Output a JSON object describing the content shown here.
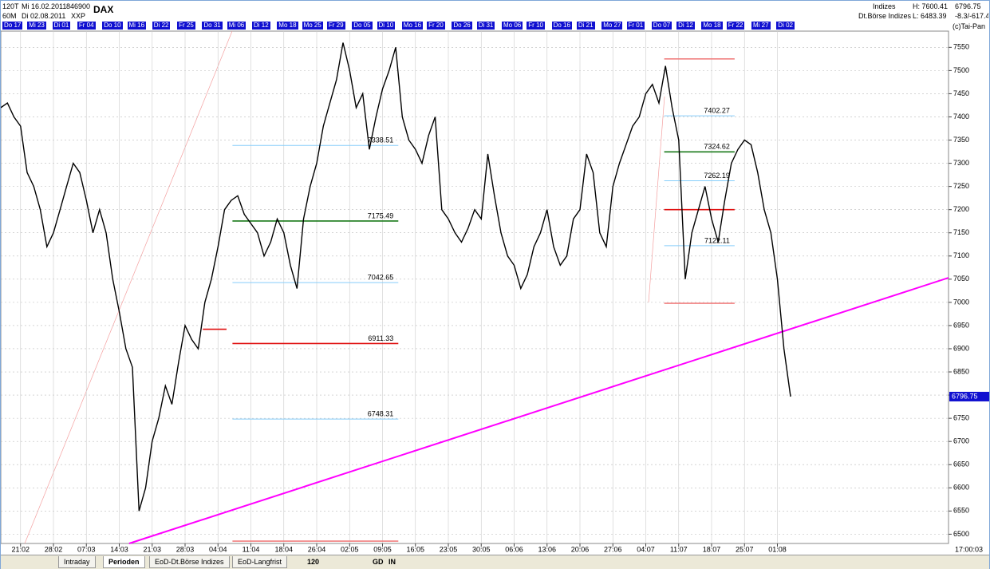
{
  "header": {
    "left": [
      "120T",
      "Mi 16.02.2011",
      "846900",
      "60M",
      "Di 02.08.2011",
      "XXP"
    ],
    "symbol": "DAX",
    "right": [
      "Indizes",
      "H: 7600.41",
      "6796.75",
      "Dt.Börse Indizes",
      "L: 6483.39",
      "-8.3/-617.4",
      "(c)Tai-Pan"
    ]
  },
  "date_strip": [
    "Do 17",
    "Mi 23",
    "Di 01",
    "Fr 04",
    "Do 10",
    "Mi 16",
    "Di 22",
    "Fr 25",
    "Do 31",
    "Mi 06",
    "Di 12",
    "Mo 18",
    "Mo 25",
    "Fr 29",
    "Do 05",
    "Di 10",
    "Mo 16",
    "Fr 20",
    "Do 26",
    "Di 31",
    "Mo 06",
    "Fr 10",
    "Do 16",
    "Di 21",
    "Mo 27",
    "Fr 01",
    "Do 07",
    "Di 12",
    "Mo 18",
    "Fr 22",
    "Mi 27",
    "Di 02"
  ],
  "chart_data": {
    "type": "line",
    "xlim": [
      0,
      144
    ],
    "ylim": [
      6480,
      7585
    ],
    "xticks": [
      {
        "value": 3,
        "label": "21:02"
      },
      {
        "value": 8,
        "label": "28:02"
      },
      {
        "value": 13,
        "label": "07:03"
      },
      {
        "value": 18,
        "label": "14:03"
      },
      {
        "value": 23,
        "label": "21:03"
      },
      {
        "value": 28,
        "label": "28:03"
      },
      {
        "value": 33,
        "label": "04:04"
      },
      {
        "value": 38,
        "label": "11:04"
      },
      {
        "value": 43,
        "label": "18:04"
      },
      {
        "value": 48,
        "label": "26:04"
      },
      {
        "value": 53,
        "label": "02:05"
      },
      {
        "value": 58,
        "label": "09:05"
      },
      {
        "value": 63,
        "label": "16:05"
      },
      {
        "value": 68,
        "label": "23:05"
      },
      {
        "value": 73,
        "label": "30:05"
      },
      {
        "value": 78,
        "label": "06:06"
      },
      {
        "value": 83,
        "label": "13:06"
      },
      {
        "value": 88,
        "label": "20:06"
      },
      {
        "value": 93,
        "label": "27:06"
      },
      {
        "value": 98,
        "label": "04:07"
      },
      {
        "value": 103,
        "label": "11:07"
      },
      {
        "value": 108,
        "label": "18:07"
      },
      {
        "value": 113,
        "label": "25:07"
      },
      {
        "value": 118,
        "label": "01:08"
      }
    ],
    "yticks": [
      6500,
      6550,
      6600,
      6650,
      6700,
      6750,
      6800,
      6850,
      6900,
      6950,
      7000,
      7050,
      7100,
      7150,
      7200,
      7250,
      7300,
      7350,
      7400,
      7450,
      7500,
      7550
    ],
    "series": [
      {
        "name": "DAX",
        "color": "#000000",
        "x": [
          0,
          1,
          2,
          3,
          4,
          5,
          6,
          7,
          8,
          9,
          10,
          11,
          12,
          13,
          14,
          15,
          16,
          17,
          18,
          19,
          20,
          21,
          22,
          23,
          24,
          25,
          26,
          27,
          28,
          29,
          30,
          31,
          32,
          33,
          34,
          35,
          36,
          37,
          38,
          39,
          40,
          41,
          42,
          43,
          44,
          45,
          46,
          47,
          48,
          49,
          50,
          51,
          52,
          53,
          54,
          55,
          56,
          57,
          58,
          59,
          60,
          61,
          62,
          63,
          64,
          65,
          66,
          67,
          68,
          69,
          70,
          71,
          72,
          73,
          74,
          75,
          76,
          77,
          78,
          79,
          80,
          81,
          82,
          83,
          84,
          85,
          86,
          87,
          88,
          89,
          90,
          91,
          92,
          93,
          94,
          95,
          96,
          97,
          98,
          99,
          100,
          101,
          102,
          103,
          104,
          105,
          106,
          107,
          108,
          109,
          110,
          111,
          112,
          113,
          114,
          115,
          116,
          117,
          118,
          119,
          120
        ],
        "values": [
          7420,
          7430,
          7400,
          7380,
          7280,
          7250,
          7200,
          7120,
          7150,
          7200,
          7250,
          7300,
          7280,
          7220,
          7150,
          7200,
          7150,
          7050,
          6980,
          6900,
          6860,
          6550,
          6600,
          6700,
          6750,
          6820,
          6780,
          6870,
          6950,
          6920,
          6900,
          7000,
          7050,
          7120,
          7200,
          7220,
          7230,
          7190,
          7170,
          7150,
          7100,
          7130,
          7180,
          7150,
          7080,
          7030,
          7180,
          7250,
          7300,
          7380,
          7430,
          7480,
          7560,
          7500,
          7420,
          7450,
          7330,
          7400,
          7460,
          7500,
          7550,
          7400,
          7350,
          7330,
          7300,
          7360,
          7400,
          7200,
          7180,
          7150,
          7130,
          7160,
          7200,
          7180,
          7320,
          7230,
          7150,
          7100,
          7080,
          7030,
          7060,
          7120,
          7150,
          7200,
          7120,
          7080,
          7100,
          7180,
          7200,
          7320,
          7280,
          7150,
          7120,
          7250,
          7300,
          7340,
          7380,
          7400,
          7450,
          7470,
          7430,
          7510,
          7420,
          7350,
          7050,
          7150,
          7200,
          7250,
          7180,
          7130,
          7220,
          7300,
          7330,
          7350,
          7340,
          7280,
          7200,
          7150,
          7050,
          6900,
          6796.75
        ]
      }
    ],
    "levels": [
      {
        "value": 7338.51,
        "color": "#87cefa",
        "x": [
          35.2,
          60.4
        ]
      },
      {
        "value": 7175.49,
        "color": "#1a7a1a",
        "x": [
          35.2,
          60.4
        ]
      },
      {
        "value": 7042.65,
        "color": "#87cefa",
        "x": [
          35.2,
          60.4
        ]
      },
      {
        "value": 6911.33,
        "color": "#e01010",
        "x": [
          35.2,
          60.4
        ]
      },
      {
        "value": 6748.31,
        "color": "#87cefa",
        "x": [
          35.2,
          60.4
        ]
      },
      {
        "value": 6485,
        "color": "#f08080",
        "x": [
          35.2,
          60.4
        ]
      },
      {
        "value": 6942,
        "color": "#e01010",
        "x": [
          30.7,
          34.3
        ]
      },
      {
        "value": 7525,
        "color": "#f08080",
        "x": [
          100.8,
          111.5
        ]
      },
      {
        "value": 7402.27,
        "color": "#87cefa",
        "x": [
          100.8,
          111.5
        ]
      },
      {
        "value": 7324.62,
        "color": "#1a7a1a",
        "x": [
          100.8,
          111.5
        ]
      },
      {
        "value": 7262.19,
        "color": "#87cefa",
        "x": [
          100.8,
          111.5
        ]
      },
      {
        "value": 7200,
        "color": "#e01010",
        "x": [
          100.8,
          111.5
        ]
      },
      {
        "value": 7122.11,
        "color": "#87cefa",
        "x": [
          100.8,
          111.5
        ]
      },
      {
        "value": 6998,
        "color": "#f08080",
        "x": [
          100.8,
          111.5
        ]
      }
    ],
    "level_labels": [
      0,
      1,
      2,
      3,
      4,
      8,
      9,
      10,
      12
    ],
    "trendline": {
      "x": [
        19.5,
        144
      ],
      "y": [
        6480,
        7053
      ],
      "color": "#ff00ff"
    },
    "last_color": "#1010d0",
    "grid": true
  },
  "footer": {
    "time": "17:00:03",
    "tabs": [
      "Intraday",
      "Perioden",
      "EoD-Dt.Börse Indizes",
      "EoD-Langfrist"
    ],
    "active_tab": 1,
    "controls": [
      "120",
      "GD",
      "IN"
    ]
  }
}
